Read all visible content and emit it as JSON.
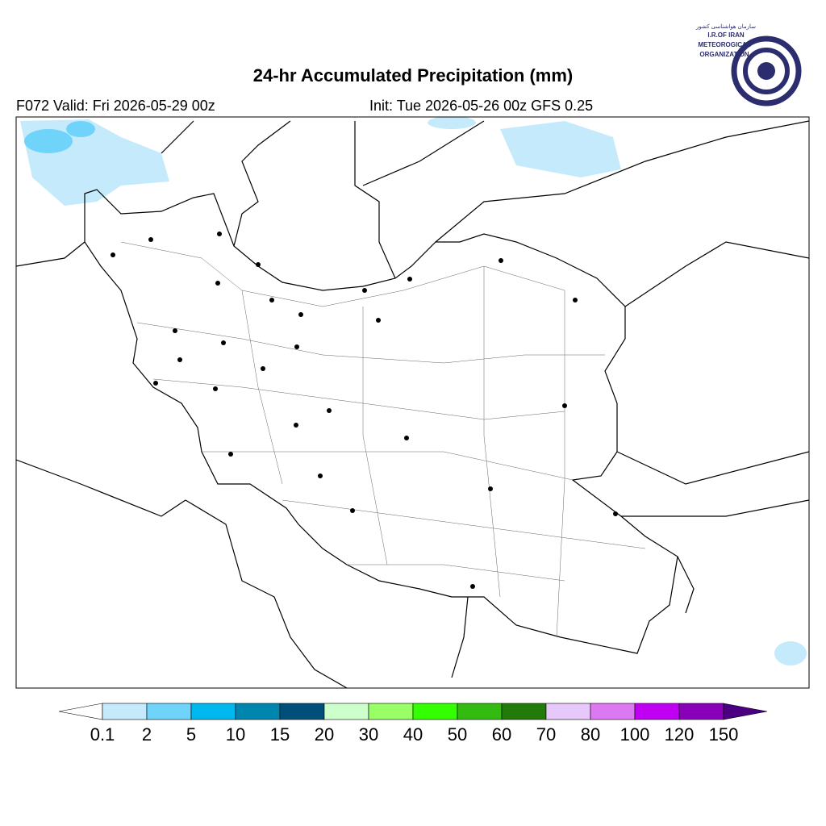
{
  "header": {
    "title": "24-hr Accumulated Precipitation (mm)",
    "valid": "F072 Valid: Fri 2026-05-29 00z",
    "init": "Init: Tue 2026-05-26 00z GFS 0.25"
  },
  "logo": {
    "persian": "سازمان هواشناسی کشور",
    "line1": "I.R.OF IRAN",
    "line2": "METEOROGICAL",
    "line3": "ORGANIZATION"
  },
  "colorbar": {
    "levels": [
      0.1,
      2,
      5,
      10,
      15,
      20,
      30,
      40,
      50,
      60,
      70,
      80,
      100,
      120,
      150
    ],
    "colors": [
      "#c4eafb",
      "#70d4fa",
      "#00b8f0",
      "#0086ae",
      "#004e7a",
      "#ccffcc",
      "#99ff66",
      "#33ff00",
      "#33bb11",
      "#227a0b",
      "#e6c8fb",
      "#dc78f2",
      "#c000f2",
      "#8800b8"
    ],
    "under_color": "#ffffff",
    "over_color": "#4b0082"
  }
}
